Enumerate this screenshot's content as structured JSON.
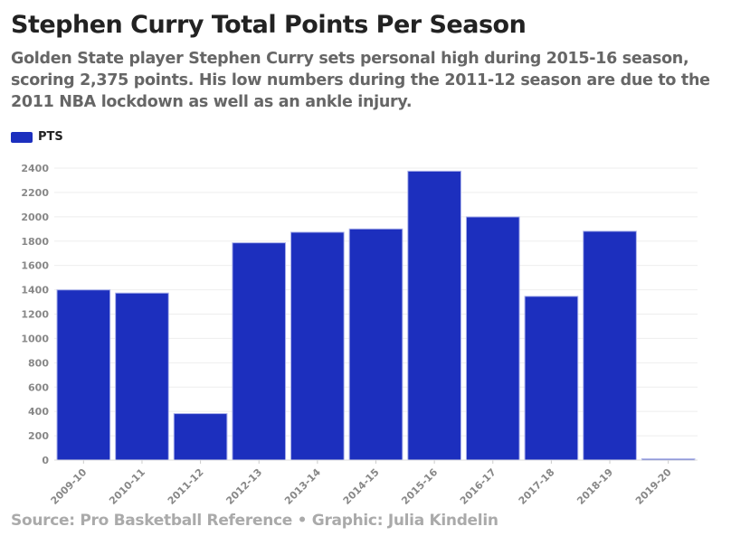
{
  "title": "Stephen Curry Total Points Per Season",
  "subtitle": "Golden State player Stephen Curry sets personal high during 2015-16 season, scoring 2,375 points. His low numbers during the 2011-12 season are due to the 2011 NBA lockdown as well as an ankle injury.",
  "source": "Source: Pro Basketball Reference • Graphic: Julia Kindelin",
  "chart_data": {
    "type": "bar",
    "title": "Stephen Curry Total Points Per Season",
    "xlabel": "",
    "ylabel": "",
    "ylim": [
      0,
      2400
    ],
    "yticks": [
      0,
      200,
      400,
      600,
      800,
      1000,
      1200,
      1400,
      1600,
      1800,
      2000,
      2200,
      2400
    ],
    "grid": true,
    "legend": "top-left",
    "categories": [
      "2009-10",
      "2010-11",
      "2011-12",
      "2012-13",
      "2013-14",
      "2014-15",
      "2015-16",
      "2016-17",
      "2017-18",
      "2018-19",
      "2019-20"
    ],
    "series": [
      {
        "name": "PTS",
        "color": "#1c2fbe",
        "values": [
          1399,
          1373,
          382,
          1786,
          1873,
          1900,
          2375,
          1999,
          1346,
          1881,
          10
        ]
      }
    ]
  }
}
